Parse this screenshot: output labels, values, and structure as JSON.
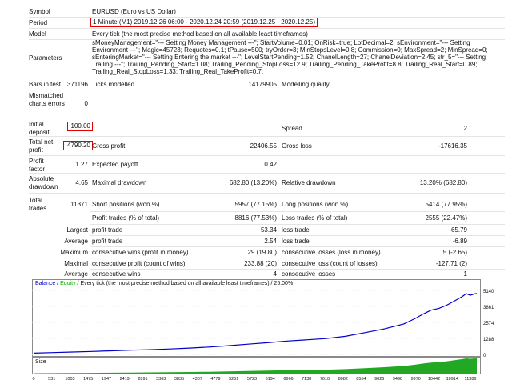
{
  "report": {
    "symbol_label": "Symbol",
    "symbol_value": "EURUSD (Euro vs US Dollar)",
    "period_label": "Period",
    "period_value": "1 Minute (M1) 2019.12.26 06:00 - 2020.12.24 20:59 (2019.12.25 - 2020.12.25)",
    "model_label": "Model",
    "model_value": "Every tick (the most precise method based on all available least timeframes)",
    "parameters_label": "Parameters",
    "parameters_lines": [
      "sMoneyManagement=\"--- Setting Money Management ---\"; StartVolume=0.01; OnRisk=true; LotDecimal=2; sEnvironment=\"--- Setting",
      "Environment ---\"; Magic=45723; Requotes=0.1; tPause=500; tryOrder=3; MinStopsLevel=0.8; Commission=0; MaxSpread=2; MinSpread=0;",
      "sEnteringMarket=\"--- Setting Entering the market ---\"; LevelStartPending=1.52; ChanelLength=27; ChanelDeviation=2.45; str_5=\"--- Setting",
      "Trailing ---\"; Trailing_Pending_Start=1.08; Trailing_Pending_StopLoss=12.9; Trailing_Pending_TakeProfit=8.8; Trailing_Real_Start=0.89;",
      "Trailing_Real_StopLoss=1.33; Trailing_Real_TakeProfit=0.7;"
    ],
    "bars_label": "Bars in test",
    "bars_value": "371196",
    "ticks_label": "Ticks modelled",
    "ticks_value": "14179905",
    "quality_label": "Modelling quality",
    "quality_value": "",
    "mismatched_label": "Mismatched charts errors",
    "mismatched_value": "0",
    "initial_deposit_label": "Initial deposit",
    "initial_deposit_value": "100.00",
    "spread_label": "Spread",
    "spread_value": "2",
    "net_profit_label": "Total net profit",
    "net_profit_value": "4790.20",
    "gross_profit_label": "Gross profit",
    "gross_profit_value": "22406.55",
    "gross_loss_label": "Gross loss",
    "gross_loss_value": "-17616.35",
    "profit_factor_label": "Profit factor",
    "profit_factor_value": "1.27",
    "expected_payoff_label": "Expected payoff",
    "expected_payoff_value": "0.42",
    "abs_drawdown_label": "Absolute drawdown",
    "abs_drawdown_value": "4.65",
    "max_drawdown_label": "Maximal drawdown",
    "max_drawdown_value": "682.80 (13.20%)",
    "rel_drawdown_label": "Relative drawdown",
    "rel_drawdown_value": "13.20% (682.80)",
    "total_trades_label": "Total trades",
    "total_trades_value": "11371",
    "short_label": "Short positions (won %)",
    "short_value": "5957 (77.15%)",
    "long_label": "Long positions (won %)",
    "long_value": "5414 (77.95%)",
    "profit_trades_label": "Profit trades (% of total)",
    "profit_trades_value": "8816 (77.53%)",
    "loss_trades_label": "Loss trades (% of total)",
    "loss_trades_value": "2555 (22.47%)",
    "largest_label": "Largest",
    "largest_profit_label": "profit trade",
    "largest_profit_value": "53.34",
    "largest_loss_label": "loss trade",
    "largest_loss_value": "-65.79",
    "average_label": "Average",
    "average_profit_label": "profit trade",
    "average_profit_value": "2.54",
    "average_loss_label": "loss trade",
    "average_loss_value": "-6.89",
    "maximum_label": "Maximum",
    "max_cons_wins_label": "consecutive wins (profit in money)",
    "max_cons_wins_value": "29 (19.80)",
    "max_cons_losses_label": "consecutive losses (loss in money)",
    "max_cons_losses_value": "5 (-2.65)",
    "maximal_label": "Maximal",
    "maximal_cons_profit_label": "consecutive profit (count of wins)",
    "maximal_cons_profit_value": "233.88 (20)",
    "maximal_cons_loss_label": "consecutive loss (count of losses)",
    "maximal_cons_loss_value": "-127.71 (2)",
    "average2_label": "Average",
    "avg_cons_wins_label": "consecutive wins",
    "avg_cons_wins_value": "4",
    "avg_cons_losses_label": "consecutive losses",
    "avg_cons_losses_value": "1"
  },
  "chart_header": {
    "balance": "Balance",
    "slash": " / ",
    "equity": "Equity",
    "rest": " / Every tick (the most precise method based on all available least timeframes) / 25.00%"
  },
  "colors": {
    "balance": "#0000c8",
    "equity": "#00b000",
    "volume": "#22a822",
    "border": "#e00000"
  },
  "chart_data": {
    "type": "line",
    "series": [
      {
        "name": "Balance"
      }
    ],
    "yticks": [
      "5140",
      "3861",
      "2574",
      "1288",
      "0"
    ],
    "xticks": [
      "0",
      "531",
      "1003",
      "1475",
      "1947",
      "2419",
      "2891",
      "3363",
      "3835",
      "4307",
      "4779",
      "5251",
      "5723",
      "6194",
      "6666",
      "7138",
      "7610",
      "8082",
      "8554",
      "9026",
      "9498",
      "9970",
      "10442",
      "10914",
      "11386"
    ],
    "size_label": "Size",
    "trade_count_max": 11371,
    "y_max": 5140,
    "balance_points": [
      [
        0,
        100
      ],
      [
        500,
        150
      ],
      [
        1000,
        190
      ],
      [
        1500,
        240
      ],
      [
        2000,
        290
      ],
      [
        2500,
        340
      ],
      [
        3000,
        380
      ],
      [
        3500,
        440
      ],
      [
        4000,
        510
      ],
      [
        4500,
        590
      ],
      [
        5000,
        700
      ],
      [
        5500,
        820
      ],
      [
        6000,
        940
      ],
      [
        6500,
        1070
      ],
      [
        7000,
        1170
      ],
      [
        7500,
        1270
      ],
      [
        8000,
        1450
      ],
      [
        8500,
        1750
      ],
      [
        9000,
        2050
      ],
      [
        9500,
        2450
      ],
      [
        9800,
        2900
      ],
      [
        10000,
        3250
      ],
      [
        10200,
        3550
      ],
      [
        10400,
        3700
      ],
      [
        10600,
        3950
      ],
      [
        10800,
        4300
      ],
      [
        11000,
        4650
      ],
      [
        11100,
        4880
      ],
      [
        11200,
        4750
      ],
      [
        11300,
        4850
      ],
      [
        11371,
        4890
      ]
    ]
  }
}
